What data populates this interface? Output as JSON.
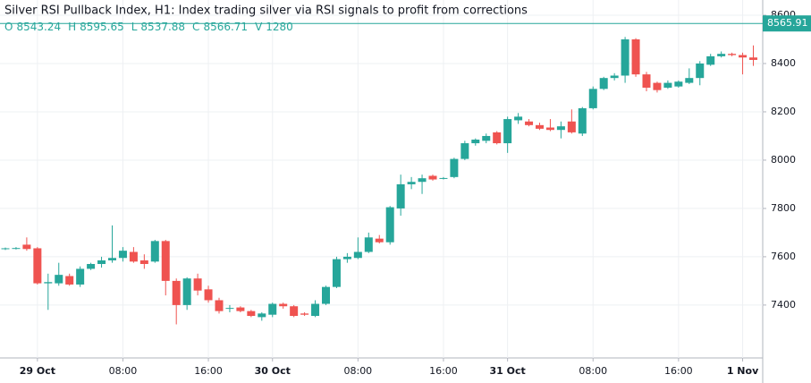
{
  "chart_data": {
    "type": "candlestick",
    "title": "Silver RSI Pullback Index, H1: Index trading silver via RSI signals to profit from corrections",
    "legend_values": [
      {
        "label": "O",
        "value": 8543.24
      },
      {
        "label": "H",
        "value": 8595.65
      },
      {
        "label": "L",
        "value": 8537.88
      },
      {
        "label": "C",
        "value": 8566.71
      },
      {
        "label": "V",
        "value": 1280
      }
    ],
    "last_price": 8565.91,
    "up_color": "#26a69a",
    "down_color": "#ef5350",
    "grid": true,
    "ylim": [
      7181,
      8663
    ],
    "yticks": [
      7400,
      7600,
      7800,
      8000,
      8200,
      8400,
      8600
    ],
    "categories": [
      null,
      null,
      null,
      "29 Oct",
      null,
      null,
      null,
      null,
      null,
      null,
      null,
      "08:00",
      null,
      null,
      null,
      null,
      null,
      null,
      null,
      "16:00",
      null,
      null,
      null,
      null,
      null,
      "30 Oct",
      null,
      null,
      null,
      null,
      null,
      null,
      null,
      "08:00",
      null,
      null,
      null,
      null,
      null,
      null,
      null,
      "16:00",
      null,
      null,
      null,
      null,
      null,
      "31 Oct",
      null,
      null,
      null,
      null,
      null,
      null,
      null,
      "08:00",
      null,
      null,
      null,
      null,
      null,
      null,
      null,
      "16:00",
      null,
      null,
      null,
      null,
      null,
      "1 Nov",
      null
    ],
    "open": [
      7632,
      7635,
      7650,
      7635,
      7490,
      7490,
      7520,
      7485,
      7550,
      7570,
      7585,
      7595,
      7620,
      7585,
      7580,
      7665,
      7500,
      7400,
      7510,
      7465,
      7420,
      7385,
      7390,
      7375,
      7350,
      7360,
      7405,
      7395,
      7365,
      7355,
      7405,
      7475,
      7590,
      7595,
      7620,
      7675,
      7660,
      7800,
      7900,
      7910,
      7935,
      7925,
      7930,
      8005,
      8070,
      8080,
      8115,
      8070,
      8165,
      8160,
      8145,
      8135,
      8125,
      8160,
      8110,
      8215,
      8295,
      8340,
      8350,
      8500,
      8355,
      8320,
      8300,
      8305,
      8320,
      8340,
      8395,
      8430,
      8440,
      8435,
      8425
    ],
    "high": [
      7638,
      7640,
      7680,
      7640,
      7530,
      7575,
      7530,
      7560,
      7575,
      7600,
      7730,
      7640,
      7640,
      7610,
      7670,
      7670,
      7510,
      7515,
      7530,
      7480,
      7430,
      7400,
      7395,
      7380,
      7370,
      7410,
      7410,
      7400,
      7370,
      7420,
      7480,
      7600,
      7615,
      7680,
      7700,
      7690,
      7810,
      7940,
      7930,
      7940,
      7940,
      7930,
      8010,
      8080,
      8090,
      8110,
      8120,
      8180,
      8195,
      8170,
      8155,
      8170,
      8160,
      8210,
      8220,
      8305,
      8345,
      8360,
      8510,
      8505,
      8365,
      8325,
      8330,
      8330,
      8380,
      8410,
      8440,
      8450,
      8445,
      8445,
      8475
    ],
    "low": [
      7628,
      7630,
      7625,
      7485,
      7380,
      7480,
      7480,
      7475,
      7545,
      7555,
      7575,
      7580,
      7575,
      7550,
      7575,
      7440,
      7320,
      7380,
      7440,
      7410,
      7365,
      7370,
      7370,
      7350,
      7335,
      7350,
      7385,
      7350,
      7355,
      7350,
      7400,
      7470,
      7575,
      7590,
      7615,
      7655,
      7650,
      7770,
      7880,
      7860,
      7915,
      7920,
      7925,
      8000,
      8060,
      8070,
      8065,
      8030,
      8150,
      8140,
      8125,
      8120,
      8090,
      8110,
      8100,
      8210,
      8290,
      8330,
      8320,
      8345,
      8285,
      8280,
      8295,
      8300,
      8315,
      8310,
      8390,
      8425,
      8430,
      8355,
      8390
    ],
    "close": [
      7635,
      7636,
      7632,
      7490,
      7495,
      7525,
      7485,
      7550,
      7570,
      7585,
      7595,
      7625,
      7580,
      7570,
      7665,
      7500,
      7400,
      7510,
      7460,
      7420,
      7375,
      7388,
      7375,
      7355,
      7365,
      7405,
      7395,
      7355,
      7360,
      7405,
      7475,
      7590,
      7600,
      7620,
      7680,
      7660,
      7805,
      7900,
      7910,
      7925,
      7920,
      7926,
      8005,
      8070,
      8085,
      8100,
      8070,
      8170,
      8180,
      8145,
      8130,
      8125,
      8140,
      8115,
      8215,
      8295,
      8340,
      8350,
      8500,
      8355,
      8300,
      8290,
      8320,
      8325,
      8340,
      8400,
      8430,
      8440,
      8435,
      8425,
      8415
    ]
  }
}
